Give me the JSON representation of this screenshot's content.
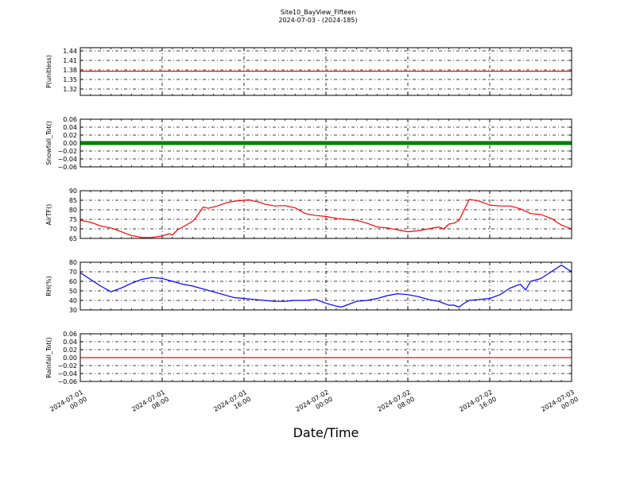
{
  "title": "Site10_BayView_Fifteen",
  "subtitle": "2024-07-03 - (2024-185)",
  "xlabel": "Date/Time",
  "x_ticks": [
    "2024-07-01\n00:00",
    "2024-07-01\n08:00",
    "2024-07-01\n16:00",
    "2024-07-02\n00:00",
    "2024-07-02\n08:00",
    "2024-07-02\n16:00",
    "2024-07-03\n00:00"
  ],
  "colors": {
    "red": "#ff0000",
    "green": "#008000",
    "blue": "#0000ff"
  },
  "chart_data": [
    {
      "type": "line",
      "ylabel": "P(unitless)",
      "ylim": [
        1.3,
        1.45
      ],
      "yticks": [
        "1.44",
        "1.41",
        "1.38",
        "1.35",
        "1.32"
      ],
      "ytick_values": [
        1.44,
        1.41,
        1.38,
        1.35,
        1.32
      ],
      "grid": true,
      "series": [
        {
          "color": "#ff0000",
          "x": [
            0,
            48
          ],
          "y": [
            1.376,
            1.376
          ]
        }
      ]
    },
    {
      "type": "line",
      "ylabel": "Snowfall_Tot()",
      "ylim": [
        -0.06,
        0.06
      ],
      "yticks": [
        "0.06",
        "0.04",
        "0.02",
        "0.00",
        "−0.02",
        "−0.04",
        "−0.06"
      ],
      "ytick_values": [
        0.06,
        0.04,
        0.02,
        0.0,
        -0.02,
        -0.04,
        -0.06
      ],
      "grid": true,
      "series": [
        {
          "color": "#008000",
          "marker": true,
          "x": [
            0,
            48
          ],
          "y": [
            0.0,
            0.0
          ]
        }
      ]
    },
    {
      "type": "line",
      "ylabel": "AirTF()",
      "ylim": [
        65,
        90
      ],
      "yticks": [
        "90",
        "85",
        "80",
        "75",
        "70",
        "65"
      ],
      "ytick_values": [
        90,
        85,
        80,
        75,
        70,
        65
      ],
      "grid": true,
      "series": [
        {
          "color": "#ff0000",
          "x": [
            0,
            1,
            2,
            3,
            4,
            5,
            6,
            7,
            8,
            8.7,
            9,
            9.5,
            10,
            11,
            11.5,
            12,
            12.5,
            13,
            13.5,
            14,
            14.5,
            15,
            15.5,
            16,
            16.5,
            17,
            17.5,
            18,
            19,
            20,
            21,
            22,
            23,
            24,
            25,
            26,
            27,
            28,
            29,
            30,
            31,
            31.5,
            32,
            33,
            34,
            35,
            35.5,
            36,
            36.5,
            37,
            38,
            39,
            40,
            41,
            42,
            43,
            44,
            45,
            46,
            47,
            48
          ],
          "y": [
            74.5,
            73.5,
            71.5,
            70.5,
            68.5,
            66.5,
            65.5,
            65.5,
            66.3,
            67.5,
            66.8,
            69.5,
            71,
            74,
            77.5,
            81.5,
            80.8,
            81.5,
            82.2,
            83.2,
            84,
            84.4,
            84.8,
            85,
            85.2,
            84.5,
            84,
            83,
            82,
            82.2,
            81,
            78,
            77,
            76.5,
            75.5,
            75,
            74.5,
            73,
            71,
            70.5,
            69.5,
            69,
            68.5,
            69,
            70,
            71,
            70,
            72.5,
            73,
            74.5,
            85.5,
            84.5,
            82.5,
            82,
            82,
            80.5,
            78,
            77.5,
            75.5,
            72,
            70
          ]
        }
      ]
    },
    {
      "type": "line",
      "ylabel": "RH(%)",
      "ylim": [
        30,
        80
      ],
      "yticks": [
        "80",
        "70",
        "60",
        "50",
        "40",
        "30"
      ],
      "ytick_values": [
        80,
        70,
        60,
        50,
        40,
        30
      ],
      "grid": true,
      "series": [
        {
          "color": "#0000ff",
          "x": [
            0,
            1,
            2,
            3,
            4,
            5,
            6,
            7,
            8,
            9,
            10,
            11,
            12,
            13,
            14,
            15,
            16,
            17,
            18,
            19,
            20,
            21,
            22,
            23,
            24,
            25,
            25.5,
            26,
            27,
            28,
            29,
            30,
            31,
            32,
            33,
            34,
            35,
            36,
            36.5,
            37,
            37.5,
            38,
            39,
            40,
            41,
            42,
            43,
            43.5,
            44,
            45,
            46,
            47,
            48
          ],
          "y": [
            69,
            62,
            55,
            49,
            53,
            58,
            62,
            64,
            63,
            60,
            57,
            55,
            52,
            49,
            46,
            43,
            42,
            41,
            40,
            39,
            39,
            40,
            40,
            41,
            37,
            34,
            33,
            35,
            39,
            40,
            42,
            45,
            47,
            46,
            44,
            41,
            39,
            35,
            35,
            33,
            37,
            40,
            41,
            42,
            46,
            53,
            57,
            51,
            60,
            63,
            70,
            77,
            70
          ]
        }
      ]
    },
    {
      "type": "line",
      "ylabel": "Rainfall_Tot()",
      "ylim": [
        -0.06,
        0.06
      ],
      "yticks": [
        "0.06",
        "0.04",
        "0.02",
        "0.00",
        "−0.02",
        "−0.04",
        "−0.06"
      ],
      "ytick_values": [
        0.06,
        0.04,
        0.02,
        0.0,
        -0.02,
        -0.04,
        -0.06
      ],
      "grid": true,
      "series": [
        {
          "color": "#ff0000",
          "x": [
            0,
            48
          ],
          "y": [
            0.0,
            0.0
          ]
        }
      ]
    }
  ]
}
